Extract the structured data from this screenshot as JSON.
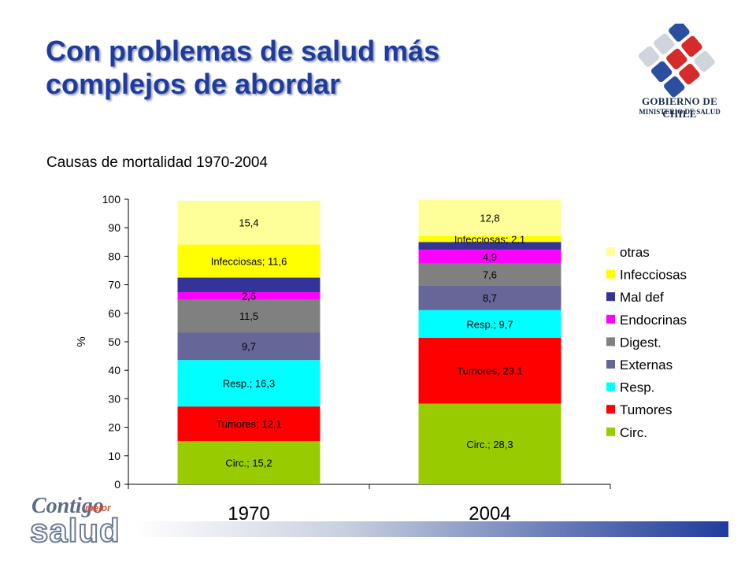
{
  "title": {
    "line1": "Con problemas de salud más",
    "line2": "complejos de abordar"
  },
  "subtitle": "Causas de mortalidad 1970-2004",
  "logo": {
    "line1": "GOBIERNO DE CHILE",
    "line2": "MINISTERIO DE SALUD",
    "bottom_line1": "Contigo",
    "bottom_mejor": "mejor",
    "bottom_line2": "salud"
  },
  "colors": {
    "title": "#1f3c9c",
    "bar_accent": "#1f3c9c"
  },
  "chart_data": {
    "type": "bar",
    "stacked": true,
    "categories": [
      "1970",
      "2004"
    ],
    "ylabel": "%",
    "ylim": [
      0,
      100
    ],
    "yticks": [
      "0",
      "10",
      "20",
      "30",
      "40",
      "50",
      "60",
      "70",
      "80",
      "90",
      "100"
    ],
    "grid": false,
    "legend_position": "right",
    "series": [
      {
        "name": "Circ.",
        "color": "#99cc00",
        "values": [
          15.2,
          28.3
        ],
        "labels": [
          "Circ.; 15,2",
          "Circ.; 28,3"
        ]
      },
      {
        "name": "Tumores",
        "color": "#ff0000",
        "values": [
          12.1,
          23.1
        ],
        "labels": [
          "Tumores; 12,1",
          "Tumores; 23,1"
        ]
      },
      {
        "name": "Resp.",
        "color": "#00ffff",
        "values": [
          16.3,
          9.7
        ],
        "labels": [
          "Resp.; 16,3",
          "Resp.; 9,7"
        ]
      },
      {
        "name": "Externas",
        "color": "#666699",
        "values": [
          9.7,
          8.7
        ],
        "labels": [
          "9,7",
          "8,7"
        ]
      },
      {
        "name": "Digest.",
        "color": "#808080",
        "values": [
          11.5,
          7.6
        ],
        "labels": [
          "11,5",
          "7,6"
        ]
      },
      {
        "name": "Endocrinas",
        "color": "#ff00ff",
        "values": [
          2.6,
          4.9
        ],
        "labels": [
          "2,6",
          "4,9"
        ]
      },
      {
        "name": "Mal def",
        "color": "#333399",
        "values": [
          5.1,
          2.7
        ],
        "labels": [
          "",
          ""
        ]
      },
      {
        "name": "Infecciosas",
        "color": "#ffff00",
        "values": [
          11.6,
          2.1
        ],
        "labels": [
          "Infecciosas; 11,6",
          "Infecciosas; 2,1"
        ]
      },
      {
        "name": "otras",
        "color": "#ffff99",
        "values": [
          15.4,
          12.8
        ],
        "labels": [
          "15,4",
          "12,8"
        ]
      }
    ],
    "legend_order": [
      "otras",
      "Infecciosas",
      "Mal def",
      "Endocrinas",
      "Digest.",
      "Externas",
      "Resp.",
      "Tumores",
      "Circ."
    ]
  }
}
